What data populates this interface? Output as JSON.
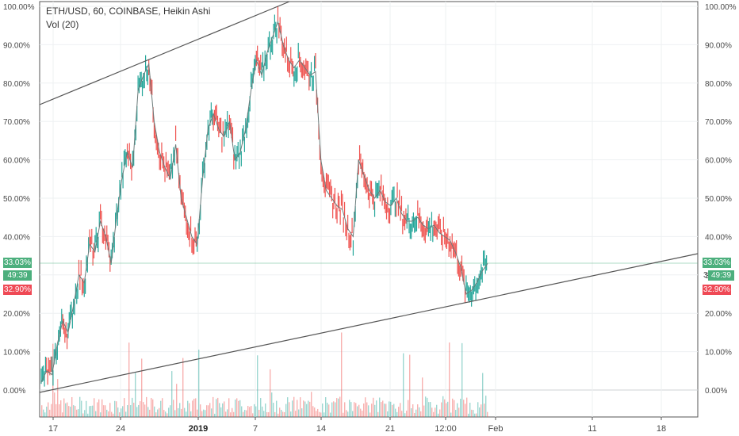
{
  "header": {
    "symbol_line": "ETH/USD, 60, COINBASE, Heikin Ashi",
    "indicator": "Vol (20)"
  },
  "price_tags": {
    "last": "33.03%",
    "countdown": "49:39",
    "low": "32.90%",
    "hidden_digit": "3"
  },
  "colors": {
    "up": "#26a69a",
    "down": "#ef5350",
    "up_tag": "#4caf7d",
    "down_tag": "#ef4955",
    "grid": "#eef0f2",
    "trendline": "#555555"
  },
  "chart_data": {
    "type": "line",
    "title": "",
    "ylabel": "",
    "xlabel": "",
    "y_unit": "%",
    "ylim": [
      -6.5,
      100
    ],
    "yticks": [
      "100.00%",
      "90.00%",
      "80.00%",
      "70.00%",
      "60.00%",
      "50.00%",
      "40.00%",
      "30.00%",
      "20.00%",
      "10.00%",
      "0.00%"
    ],
    "xticks": [
      "17",
      "24",
      "2019",
      "7",
      "14",
      "21",
      "12:00",
      "Feb",
      "11",
      "18"
    ],
    "series": [
      {
        "values": [
          2,
          5,
          4,
          12,
          18,
          15,
          22,
          30,
          28,
          38,
          36,
          44,
          40,
          33,
          45,
          55,
          62,
          58,
          78,
          82,
          85,
          70,
          62,
          58,
          55,
          64,
          50,
          45,
          40,
          38,
          55,
          68,
          72,
          68,
          66,
          70,
          60,
          62,
          68,
          78,
          86,
          82,
          88,
          92,
          96,
          90,
          86,
          84,
          86,
          84,
          82,
          83,
          60,
          52,
          50,
          48,
          47,
          42,
          40,
          60,
          56,
          52,
          50,
          52,
          49,
          48,
          50,
          46,
          44,
          44,
          45,
          43,
          42,
          43,
          41,
          40,
          39,
          36,
          32,
          25,
          26,
          28,
          31,
          33
        ]
      }
    ],
    "volume_note": "volume bars at bottom, same colors as price"
  }
}
